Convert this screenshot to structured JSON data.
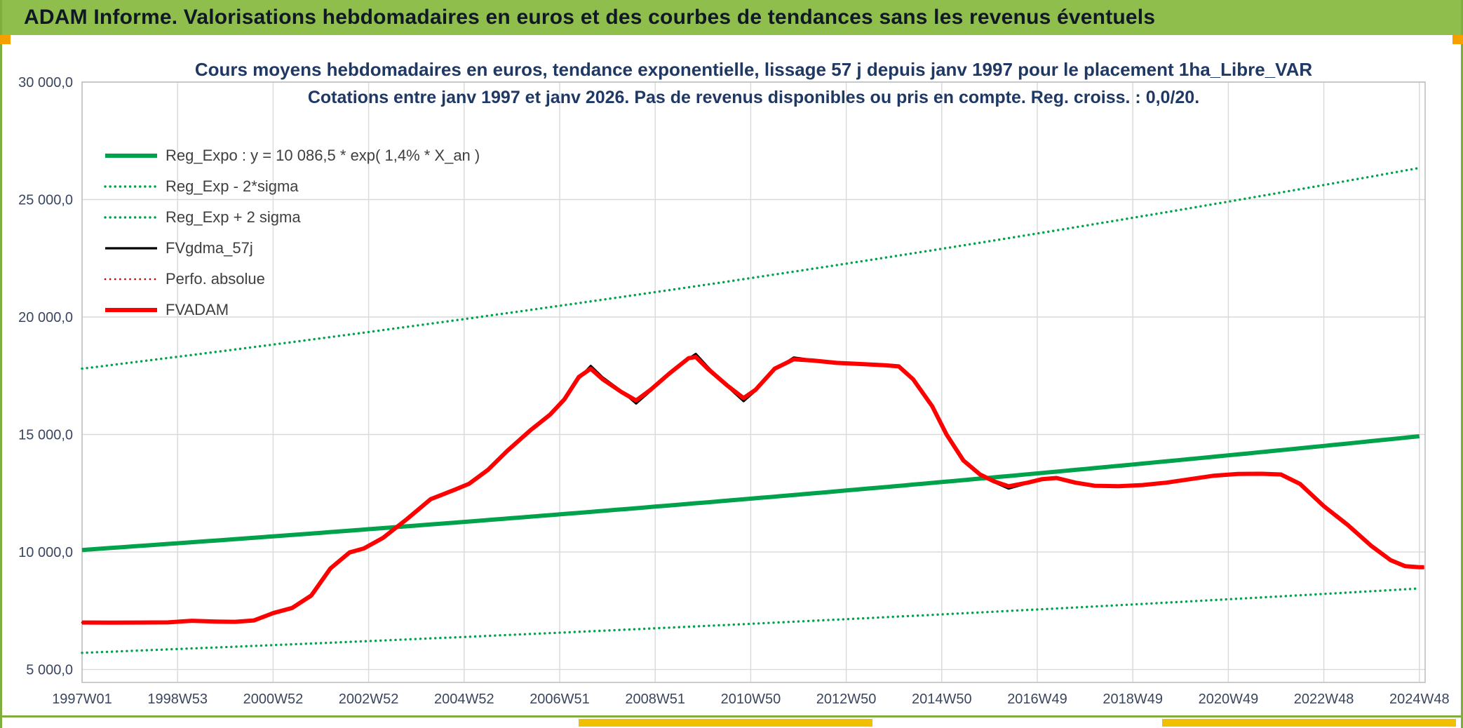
{
  "header": {
    "title": "ADAM Informe. Valorisations hebdomadaires en euros et des courbes de tendances sans les revenus éventuels"
  },
  "colors": {
    "header_bg": "#90BE4C",
    "header_text": "#101826",
    "border_green": "#7FAE3E",
    "title_text": "#1F3864",
    "axis_text": "#39465E",
    "grid": "#D9D9D9",
    "grid_border": "#C0C0C0",
    "green": "#00A24C",
    "red": "#FF0000",
    "dark_red": "#C00000",
    "black": "#000000",
    "orange_marker": "#F6A000",
    "yellow_marker": "#F0C000"
  },
  "chart_data": {
    "type": "line",
    "title_line1": "Cours moyens hebdomadaires en euros, tendance exponentielle, lissage 57 j depuis janv 1997 pour le placement 1ha_Libre_VAR",
    "title_line2": "Cotations entre janv 1997 et janv 2026. Pas de revenus disponibles ou pris en compte. Reg. croiss. : 0,0/20.",
    "axes": {
      "x_min": 1997.0,
      "x_max": 2025.12,
      "y_min": 4450,
      "y_max": 30000
    },
    "y_ticks": [
      {
        "v": 5000,
        "label": "5 000,0"
      },
      {
        "v": 10000,
        "label": "10 000,0"
      },
      {
        "v": 15000,
        "label": "15 000,0"
      },
      {
        "v": 20000,
        "label": "20 000,0"
      },
      {
        "v": 25000,
        "label": "25 000,0"
      },
      {
        "v": 30000,
        "label": "30 000,0"
      }
    ],
    "x_ticks": [
      {
        "year": 1997.0,
        "label": "1997W01"
      },
      {
        "year": 1999.0,
        "label": "1998W53"
      },
      {
        "year": 2001.0,
        "label": "2000W52"
      },
      {
        "year": 2003.0,
        "label": "2002W52"
      },
      {
        "year": 2005.0,
        "label": "2004W52"
      },
      {
        "year": 2007.0,
        "label": "2006W51"
      },
      {
        "year": 2009.0,
        "label": "2008W51"
      },
      {
        "year": 2011.0,
        "label": "2010W50"
      },
      {
        "year": 2013.0,
        "label": "2012W50"
      },
      {
        "year": 2015.0,
        "label": "2014W50"
      },
      {
        "year": 2017.0,
        "label": "2016W49"
      },
      {
        "year": 2019.0,
        "label": "2018W49"
      },
      {
        "year": 2021.0,
        "label": "2020W49"
      },
      {
        "year": 2023.0,
        "label": "2022W48"
      },
      {
        "year": 2025.0,
        "label": "2024W48"
      }
    ],
    "regression": {
      "a": 10086.5,
      "rate": 0.014,
      "x_start": 1997.0,
      "sigma_up_factor": 1.765,
      "sigma_down_factor": 0.566
    },
    "legend": [
      {
        "id": "reg",
        "label": "Reg_Expo : y = 10 086,5 * exp( 1,4% *  X_an )",
        "color": "#00A24C",
        "style": "solid",
        "width": 6
      },
      {
        "id": "minus2",
        "label": "Reg_Exp - 2*sigma",
        "color": "#00A24C",
        "style": "dotted",
        "width": 3.4
      },
      {
        "id": "plus2",
        "label": "Reg_Exp + 2 sigma",
        "color": "#00A24C",
        "style": "dotted",
        "width": 3.4
      },
      {
        "id": "fvgdma",
        "label": "FVgdma_57j",
        "color": "#000000",
        "style": "solid",
        "width": 3.2
      },
      {
        "id": "perfo",
        "label": "Perfo. absolue",
        "color": "#C00000",
        "style": "dotted",
        "width": 2.6
      },
      {
        "id": "fvadam",
        "label": "FVADAM",
        "color": "#FF0000",
        "style": "solid",
        "width": 6
      }
    ],
    "draw_order": [
      "plus2",
      "minus2",
      "reg",
      "perfo",
      "fvgdma",
      "fvadam"
    ],
    "series": {
      "fvadam": {
        "points": [
          [
            1997.0,
            7000
          ],
          [
            1997.6,
            6995
          ],
          [
            1998.2,
            7000
          ],
          [
            1998.8,
            7005
          ],
          [
            1999.3,
            7075
          ],
          [
            1999.8,
            7040
          ],
          [
            2000.2,
            7030
          ],
          [
            2000.6,
            7090
          ],
          [
            2001.0,
            7400
          ],
          [
            2001.4,
            7620
          ],
          [
            2001.8,
            8150
          ],
          [
            2002.2,
            9300
          ],
          [
            2002.6,
            9980
          ],
          [
            2002.9,
            10150
          ],
          [
            2003.3,
            10600
          ],
          [
            2003.8,
            11400
          ],
          [
            2004.3,
            12250
          ],
          [
            2004.8,
            12650
          ],
          [
            2005.1,
            12900
          ],
          [
            2005.5,
            13500
          ],
          [
            2005.9,
            14300
          ],
          [
            2006.4,
            15200
          ],
          [
            2006.8,
            15850
          ],
          [
            2007.1,
            16500
          ],
          [
            2007.4,
            17450
          ],
          [
            2007.65,
            17800
          ],
          [
            2007.9,
            17350
          ],
          [
            2008.3,
            16800
          ],
          [
            2008.6,
            16450
          ],
          [
            2008.9,
            16900
          ],
          [
            2009.3,
            17600
          ],
          [
            2009.7,
            18250
          ],
          [
            2009.85,
            18300
          ],
          [
            2010.1,
            17800
          ],
          [
            2010.5,
            17100
          ],
          [
            2010.85,
            16550
          ],
          [
            2011.1,
            16900
          ],
          [
            2011.5,
            17800
          ],
          [
            2011.9,
            18200
          ],
          [
            2012.3,
            18150
          ],
          [
            2012.8,
            18050
          ],
          [
            2013.3,
            18000
          ],
          [
            2013.8,
            17950
          ],
          [
            2014.1,
            17900
          ],
          [
            2014.4,
            17350
          ],
          [
            2014.8,
            16200
          ],
          [
            2015.1,
            15000
          ],
          [
            2015.45,
            13900
          ],
          [
            2015.8,
            13300
          ],
          [
            2016.1,
            13000
          ],
          [
            2016.4,
            12800
          ],
          [
            2016.8,
            12950
          ],
          [
            2017.1,
            13100
          ],
          [
            2017.4,
            13150
          ],
          [
            2017.8,
            12950
          ],
          [
            2018.2,
            12820
          ],
          [
            2018.7,
            12800
          ],
          [
            2019.2,
            12850
          ],
          [
            2019.7,
            12950
          ],
          [
            2020.2,
            13100
          ],
          [
            2020.7,
            13250
          ],
          [
            2021.2,
            13320
          ],
          [
            2021.7,
            13330
          ],
          [
            2022.1,
            13300
          ],
          [
            2022.5,
            12900
          ],
          [
            2023.0,
            11950
          ],
          [
            2023.5,
            11150
          ],
          [
            2024.0,
            10250
          ],
          [
            2024.4,
            9650
          ],
          [
            2024.7,
            9400
          ],
          [
            2025.0,
            9350
          ],
          [
            2025.1,
            9350
          ]
        ]
      },
      "fvgdma": {
        "points": [
          [
            1997.0,
            7000
          ],
          [
            1997.6,
            7000
          ],
          [
            1998.2,
            7000
          ],
          [
            1998.8,
            7010
          ],
          [
            1999.3,
            7065
          ],
          [
            1999.8,
            7045
          ],
          [
            2000.2,
            7035
          ],
          [
            2000.6,
            7085
          ],
          [
            2001.0,
            7380
          ],
          [
            2001.4,
            7600
          ],
          [
            2001.8,
            8100
          ],
          [
            2002.2,
            9250
          ],
          [
            2002.6,
            9950
          ],
          [
            2002.9,
            10130
          ],
          [
            2003.3,
            10580
          ],
          [
            2003.8,
            11380
          ],
          [
            2004.3,
            12230
          ],
          [
            2004.8,
            12640
          ],
          [
            2005.1,
            12890
          ],
          [
            2005.5,
            13480
          ],
          [
            2005.9,
            14280
          ],
          [
            2006.4,
            15180
          ],
          [
            2006.8,
            15830
          ],
          [
            2007.1,
            16480
          ],
          [
            2007.4,
            17380
          ],
          [
            2007.65,
            17920
          ],
          [
            2007.9,
            17430
          ],
          [
            2008.3,
            16840
          ],
          [
            2008.6,
            16320
          ],
          [
            2008.9,
            16850
          ],
          [
            2009.3,
            17560
          ],
          [
            2009.7,
            18230
          ],
          [
            2009.85,
            18430
          ],
          [
            2010.1,
            17880
          ],
          [
            2010.5,
            17060
          ],
          [
            2010.85,
            16420
          ],
          [
            2011.1,
            16860
          ],
          [
            2011.5,
            17760
          ],
          [
            2011.9,
            18280
          ],
          [
            2012.3,
            18170
          ],
          [
            2012.8,
            18060
          ],
          [
            2013.3,
            18010
          ],
          [
            2013.8,
            17950
          ],
          [
            2014.1,
            17890
          ],
          [
            2014.4,
            17320
          ],
          [
            2014.8,
            16170
          ],
          [
            2015.1,
            14970
          ],
          [
            2015.45,
            13870
          ],
          [
            2015.8,
            13270
          ],
          [
            2016.1,
            12970
          ],
          [
            2016.4,
            12700
          ],
          [
            2016.8,
            12930
          ],
          [
            2017.1,
            13090
          ],
          [
            2017.4,
            13160
          ],
          [
            2017.8,
            12930
          ],
          [
            2018.2,
            12800
          ],
          [
            2018.7,
            12790
          ],
          [
            2019.2,
            12840
          ],
          [
            2019.7,
            12940
          ],
          [
            2020.2,
            13090
          ],
          [
            2020.7,
            13240
          ],
          [
            2021.2,
            13310
          ],
          [
            2021.7,
            13340
          ],
          [
            2022.1,
            13290
          ],
          [
            2022.5,
            12880
          ],
          [
            2023.0,
            11930
          ],
          [
            2023.5,
            11130
          ],
          [
            2024.0,
            10230
          ],
          [
            2024.4,
            9630
          ],
          [
            2024.7,
            9380
          ],
          [
            2025.0,
            9330
          ],
          [
            2025.1,
            9330
          ]
        ]
      },
      "perfo": {
        "points_same_as": "fvadam"
      }
    }
  }
}
